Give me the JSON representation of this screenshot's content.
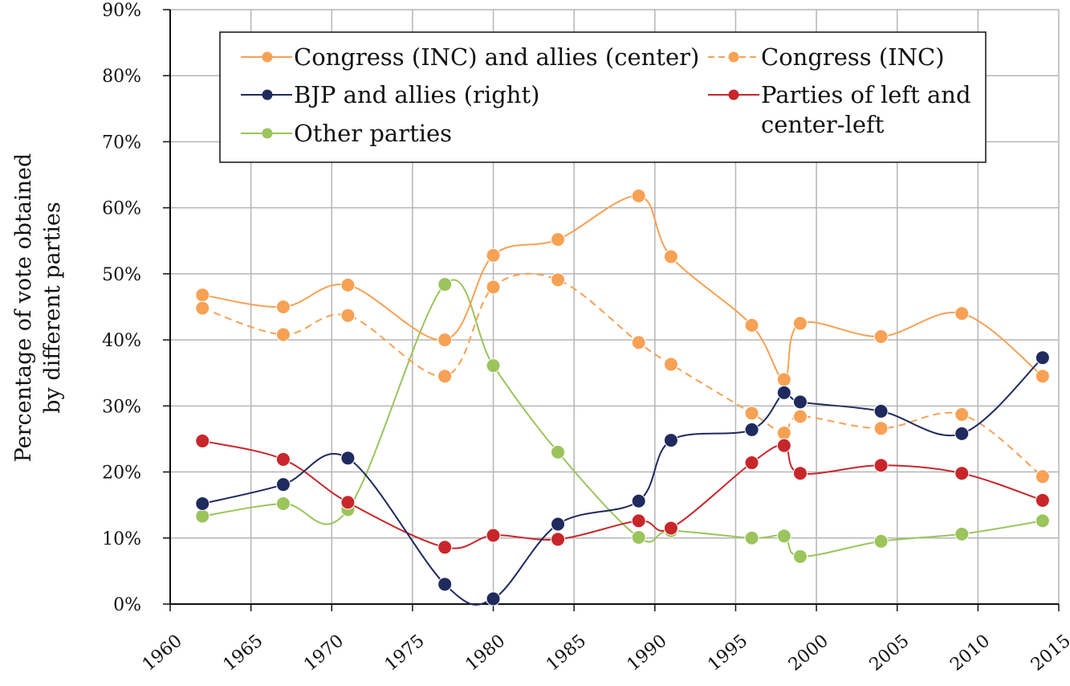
{
  "chart_data": {
    "type": "line",
    "ylabel_lines": [
      "Percentage of vote obtained",
      "by different parties"
    ],
    "xlabel": "",
    "xlim": [
      1960,
      2015
    ],
    "ylim": [
      0,
      90
    ],
    "x_ticks": [
      "1960",
      "1965",
      "1970",
      "1975",
      "1980",
      "1985",
      "1990",
      "1995",
      "2000",
      "2005",
      "2010",
      "2015"
    ],
    "y_ticks": [
      "0%",
      "10%",
      "20%",
      "30%",
      "40%",
      "50%",
      "60%",
      "70%",
      "80%",
      "90%"
    ],
    "grid": true,
    "legend_position": "top",
    "series": [
      {
        "name": "Congress (INC) and allies (center)",
        "color": "#f7a154",
        "dashed": false,
        "x": [
          1962,
          1967,
          1971,
          1977,
          1980,
          1984,
          1989,
          1991,
          1996,
          1998,
          1999,
          2004,
          2009,
          2014
        ],
        "y": [
          46.8,
          45.0,
          48.3,
          40.0,
          52.8,
          55.2,
          61.8,
          52.6,
          42.2,
          34.0,
          42.5,
          40.5,
          44.0,
          34.5
        ]
      },
      {
        "name": "Congress (INC)",
        "color": "#f7a154",
        "dashed": true,
        "x": [
          1962,
          1967,
          1971,
          1977,
          1980,
          1984,
          1989,
          1991,
          1996,
          1998,
          1999,
          2004,
          2009,
          2014
        ],
        "y": [
          44.8,
          40.8,
          43.7,
          34.5,
          48.0,
          49.1,
          39.6,
          36.3,
          28.9,
          25.9,
          28.4,
          26.6,
          28.7,
          19.3
        ]
      },
      {
        "name": "BJP and allies (right)",
        "color": "#1f2a5e",
        "dashed": false,
        "x": [
          1962,
          1967,
          1971,
          1977,
          1980,
          1984,
          1989,
          1991,
          1996,
          1998,
          1999,
          2004,
          2009,
          2014
        ],
        "y": [
          15.2,
          18.1,
          22.1,
          3.0,
          0.8,
          12.1,
          15.6,
          24.8,
          26.4,
          32.0,
          30.6,
          29.2,
          25.8,
          37.3
        ]
      },
      {
        "name": "Parties of left and center-left",
        "color": "#c8262a",
        "dashed": false,
        "x": [
          1962,
          1967,
          1971,
          1977,
          1980,
          1984,
          1989,
          1991,
          1996,
          1998,
          1999,
          2004,
          2009,
          2014
        ],
        "y": [
          24.7,
          21.9,
          15.4,
          8.6,
          10.4,
          9.8,
          12.6,
          11.5,
          21.4,
          24.0,
          19.8,
          21.0,
          19.8,
          15.7
        ]
      },
      {
        "name": "Other parties",
        "color": "#9bc45c",
        "dashed": false,
        "x": [
          1962,
          1967,
          1971,
          1977,
          1980,
          1984,
          1989,
          1991,
          1996,
          1998,
          1999,
          2004,
          2009,
          2014
        ],
        "y": [
          13.3,
          15.2,
          14.3,
          48.4,
          36.1,
          23.0,
          10.1,
          11.1,
          10.0,
          10.3,
          7.2,
          9.5,
          10.6,
          12.6
        ]
      }
    ],
    "legend": [
      {
        "series": 0,
        "lines": [
          "Congress (INC) and allies (center)"
        ]
      },
      {
        "series": 1,
        "lines": [
          "Congress (INC)"
        ]
      },
      {
        "series": 2,
        "lines": [
          "BJP and allies (right)"
        ]
      },
      {
        "series": 3,
        "lines": [
          "Parties of left and",
          "center-left"
        ]
      },
      {
        "series": 4,
        "lines": [
          "Other parties"
        ]
      }
    ]
  }
}
